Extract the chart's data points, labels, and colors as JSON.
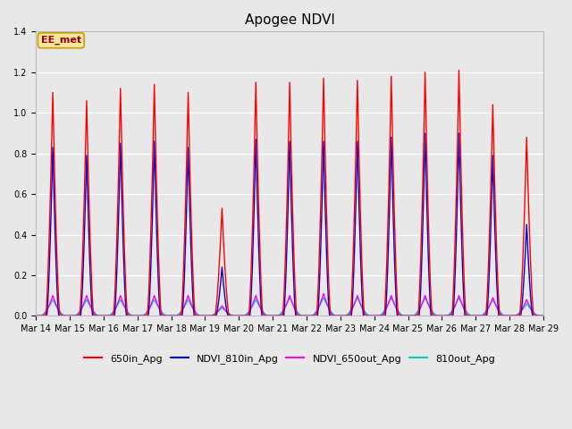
{
  "title": "Apogee NDVI",
  "annotation": "EE_met",
  "annotation_color": "#f5e6a0",
  "annotation_text_color": "#990000",
  "annotation_edge_color": "#c8a000",
  "bg_color": "#e8e8e8",
  "ylim": [
    0.0,
    1.4
  ],
  "yticks": [
    0.0,
    0.2,
    0.4,
    0.6,
    0.8,
    1.0,
    1.2,
    1.4
  ],
  "start_day": 14,
  "n_days": 15,
  "series_colors": {
    "650in_Apg": "#ff0000",
    "NDVI_810in_Apg": "#0000dd",
    "NDVI_650out_Apg": "#ff00ff",
    "810out_Apg": "#00cccc"
  },
  "series_lw": {
    "650in_Apg": 1.0,
    "NDVI_810in_Apg": 1.0,
    "NDVI_650out_Apg": 1.0,
    "810out_Apg": 1.0
  },
  "peaks_650in": [
    1.1,
    1.06,
    1.12,
    1.14,
    1.1,
    0.53,
    1.15,
    1.15,
    1.17,
    1.16,
    1.18,
    1.2,
    1.21,
    1.04,
    0.88
  ],
  "peaks_810in": [
    0.83,
    0.79,
    0.85,
    0.86,
    0.83,
    0.24,
    0.87,
    0.86,
    0.86,
    0.86,
    0.88,
    0.9,
    0.9,
    0.79,
    0.45
  ],
  "peaks_650out": [
    0.1,
    0.1,
    0.1,
    0.1,
    0.1,
    0.05,
    0.1,
    0.1,
    0.11,
    0.1,
    0.1,
    0.1,
    0.1,
    0.09,
    0.08
  ],
  "peaks_810out": [
    0.08,
    0.08,
    0.08,
    0.08,
    0.08,
    0.04,
    0.08,
    0.09,
    0.09,
    0.09,
    0.09,
    0.09,
    0.09,
    0.08,
    0.06
  ],
  "legend_labels": [
    "650in_Apg",
    "NDVI_810in_Apg",
    "NDVI_650out_Apg",
    "810out_Apg"
  ],
  "legend_colors": [
    "#ff0000",
    "#0000dd",
    "#ff00ff",
    "#00cccc"
  ],
  "title_fontsize": 11,
  "tick_fontsize": 7,
  "legend_fontsize": 8
}
